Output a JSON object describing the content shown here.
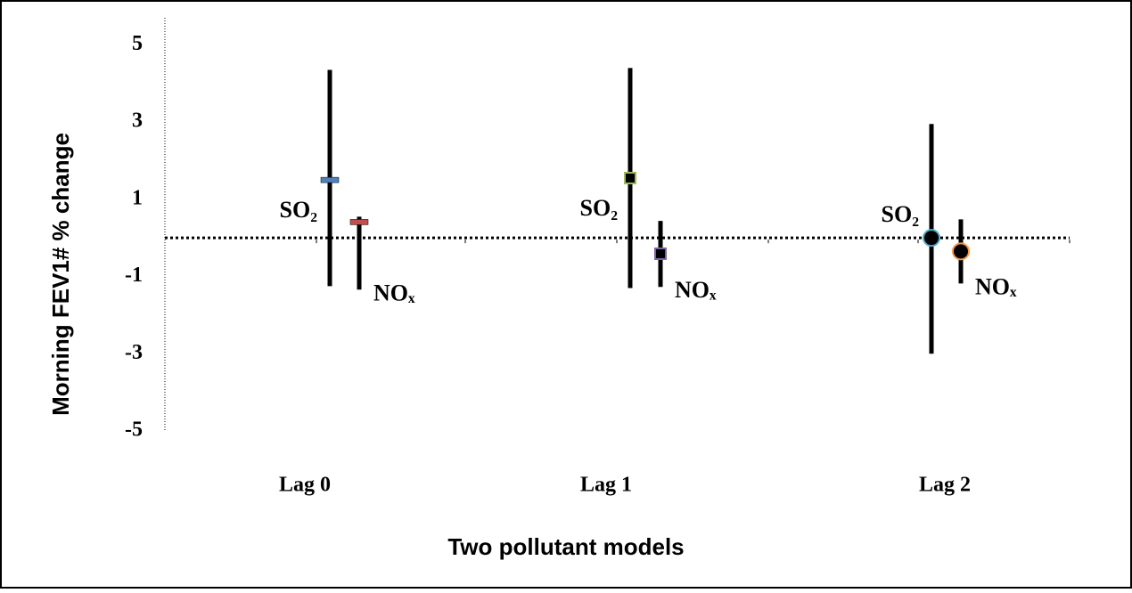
{
  "chart_data": {
    "type": "errorbar",
    "x_label": "Two pollutant models",
    "y_label": "Morning FEV1# % change",
    "categories": [
      "Lag 0",
      "Lag 1",
      "Lag 2"
    ],
    "markers": [
      "dash",
      "square",
      "circle"
    ],
    "series": [
      {
        "name": "SO₂",
        "values": [
          1.5,
          1.55,
          0
        ],
        "lower": [
          -1.25,
          -1.3,
          -3.0
        ],
        "upper": [
          4.35,
          4.4,
          2.95
        ],
        "marker_colors": [
          "#4f81bd",
          "#9bbb59",
          "#4bacc6"
        ]
      },
      {
        "name": "NOₓ",
        "values": [
          0.41,
          -0.41,
          -0.35
        ],
        "lower": [
          -1.34,
          -1.27,
          -1.18
        ],
        "upper": [
          0.55,
          0.44,
          0.48
        ],
        "marker_colors": [
          "#c0504d",
          "#8064a2",
          "#f79646"
        ]
      }
    ],
    "ylim": [
      -5,
      5.7
    ],
    "yticks": [
      -5,
      -3,
      -1,
      1,
      3,
      5
    ],
    "grid": false
  }
}
